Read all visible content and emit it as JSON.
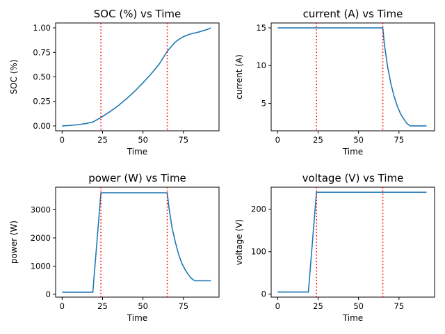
{
  "chart_data": [
    {
      "type": "line",
      "title": "SOC (%) vs Time",
      "xlabel": "Time",
      "ylabel": "SOC (%)",
      "xlim": [
        -4,
        97
      ],
      "ylim": [
        -0.05,
        1.05
      ],
      "xticks": [
        0,
        25,
        50,
        75
      ],
      "xtick_labels": [
        "0",
        "25",
        "50",
        "75"
      ],
      "yticks": [
        0,
        0.25,
        0.5,
        0.75,
        1.0
      ],
      "ytick_labels": [
        "0.00",
        "0.25",
        "0.50",
        "0.75",
        "1.00"
      ],
      "grid": false,
      "vlines": [
        24,
        65
      ],
      "series": [
        {
          "x": [
            0,
            5,
            10,
            15,
            19,
            24,
            30,
            35,
            40,
            45,
            50,
            55,
            60,
            65,
            68,
            70,
            72,
            75,
            78,
            80,
            85,
            90,
            92
          ],
          "y": [
            0.0,
            0.005,
            0.013,
            0.025,
            0.04,
            0.085,
            0.15,
            0.21,
            0.28,
            0.355,
            0.44,
            0.53,
            0.63,
            0.76,
            0.82,
            0.855,
            0.88,
            0.91,
            0.93,
            0.94,
            0.96,
            0.985,
            1.0
          ]
        }
      ]
    },
    {
      "type": "line",
      "title": "current (A) vs Time",
      "xlabel": "Time",
      "ylabel": "current (A)",
      "xlim": [
        -4,
        97
      ],
      "ylim": [
        1.35,
        15.65
      ],
      "xticks": [
        0,
        25,
        50,
        75
      ],
      "xtick_labels": [
        "0",
        "25",
        "50",
        "75"
      ],
      "yticks": [
        5,
        10,
        15
      ],
      "ytick_labels": [
        "5",
        "10",
        "15"
      ],
      "grid": false,
      "vlines": [
        24,
        65
      ],
      "series": [
        {
          "x": [
            0,
            65,
            66,
            68,
            70,
            72,
            74,
            76,
            78,
            80,
            82,
            85,
            90,
            92
          ],
          "y": [
            15,
            15,
            12.8,
            9.8,
            7.6,
            5.9,
            4.6,
            3.6,
            2.9,
            2.3,
            2.0,
            2.0,
            2.0,
            2.0
          ]
        }
      ]
    },
    {
      "type": "line",
      "title": "power (W) vs Time",
      "xlabel": "Time",
      "ylabel": "power (W)",
      "xlim": [
        -4,
        97
      ],
      "ylim": [
        -100,
        3800
      ],
      "xticks": [
        0,
        25,
        50,
        75
      ],
      "xtick_labels": [
        "0",
        "25",
        "50",
        "75"
      ],
      "yticks": [
        0,
        1000,
        2000,
        3000
      ],
      "ytick_labels": [
        "0",
        "1000",
        "2000",
        "3000"
      ],
      "grid": false,
      "vlines": [
        24,
        65
      ],
      "series": [
        {
          "x": [
            0,
            19,
            24,
            65,
            66,
            68,
            70,
            72,
            74,
            76,
            78,
            80,
            82,
            85,
            90,
            92
          ],
          "y": [
            75,
            75,
            3600,
            3600,
            3100,
            2350,
            1850,
            1420,
            1100,
            880,
            700,
            560,
            480,
            480,
            480,
            480
          ]
        }
      ]
    },
    {
      "type": "line",
      "title": "voltage (V) vs Time",
      "xlabel": "Time",
      "ylabel": "voltage (V)",
      "xlim": [
        -4,
        97
      ],
      "ylim": [
        -7,
        252
      ],
      "xticks": [
        0,
        25,
        50,
        75
      ],
      "xtick_labels": [
        "0",
        "25",
        "50",
        "75"
      ],
      "yticks": [
        0,
        100,
        200
      ],
      "ytick_labels": [
        "0",
        "100",
        "200"
      ],
      "grid": false,
      "vlines": [
        24,
        65
      ],
      "series": [
        {
          "x": [
            0,
            19,
            24,
            92
          ],
          "y": [
            5,
            5,
            240,
            240
          ]
        }
      ]
    }
  ]
}
